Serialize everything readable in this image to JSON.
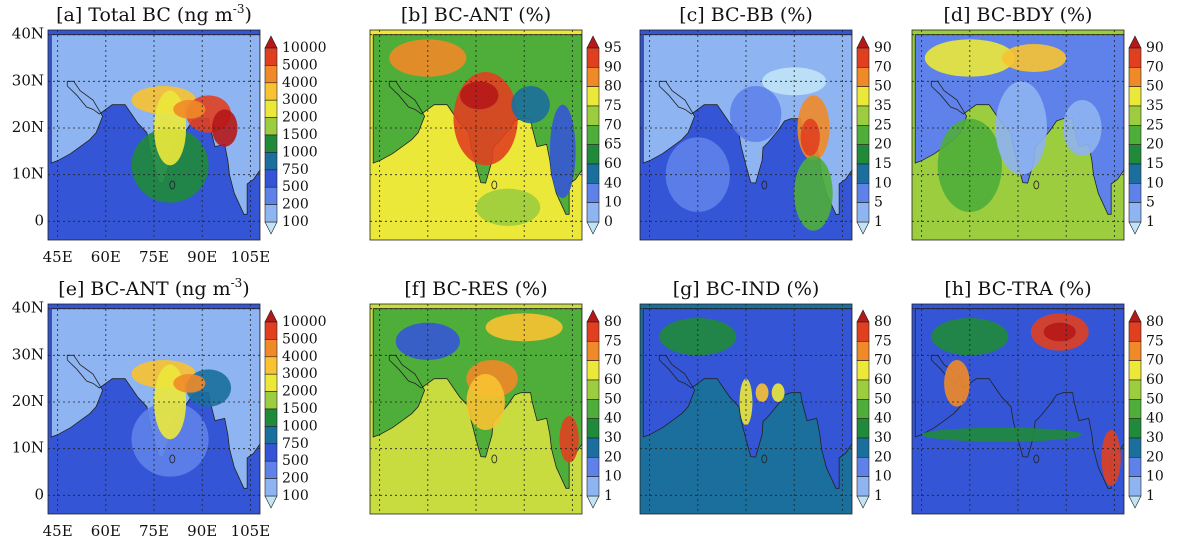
{
  "panels": [
    {
      "title": "[a] Total BC (ng m",
      "title_sup": "-3",
      "title_end": ")",
      "colorbar": [
        10000,
        5000,
        4000,
        3000,
        2000,
        1500,
        1000,
        750,
        500,
        200,
        100
      ]
    },
    {
      "title": "[b] BC-ANT (%)",
      "colorbar": [
        95,
        90,
        80,
        75,
        70,
        65,
        60,
        40,
        10,
        0
      ]
    },
    {
      "title": "[c] BC-BB (%)",
      "colorbar": [
        90,
        70,
        50,
        35,
        25,
        20,
        15,
        10,
        5,
        1
      ]
    },
    {
      "title": "[d] BC-BDY (%)",
      "colorbar": [
        90,
        70,
        50,
        35,
        25,
        20,
        15,
        10,
        5,
        1
      ]
    },
    {
      "title": "[e] BC-ANT (ng m",
      "title_sup": "-3",
      "title_end": ")",
      "colorbar": [
        10000,
        5000,
        4000,
        3000,
        2000,
        1500,
        1000,
        750,
        500,
        200,
        100
      ]
    },
    {
      "title": "[f] BC-RES (%)",
      "colorbar": [
        80,
        75,
        70,
        60,
        50,
        40,
        30,
        20,
        10,
        1
      ]
    },
    {
      "title": "[g] BC-IND (%)",
      "colorbar": [
        80,
        75,
        70,
        60,
        50,
        40,
        30,
        20,
        10,
        1
      ]
    },
    {
      "title": "[h] BC-TRA (%)",
      "colorbar": [
        80,
        75,
        70,
        60,
        50,
        40,
        30,
        20,
        10,
        1
      ]
    }
  ],
  "y_ticks": [
    "40N",
    "30N",
    "20N",
    "10N",
    "0"
  ],
  "x_ticks": [
    "45E",
    "60E",
    "75E",
    "90E",
    "105E"
  ]
}
